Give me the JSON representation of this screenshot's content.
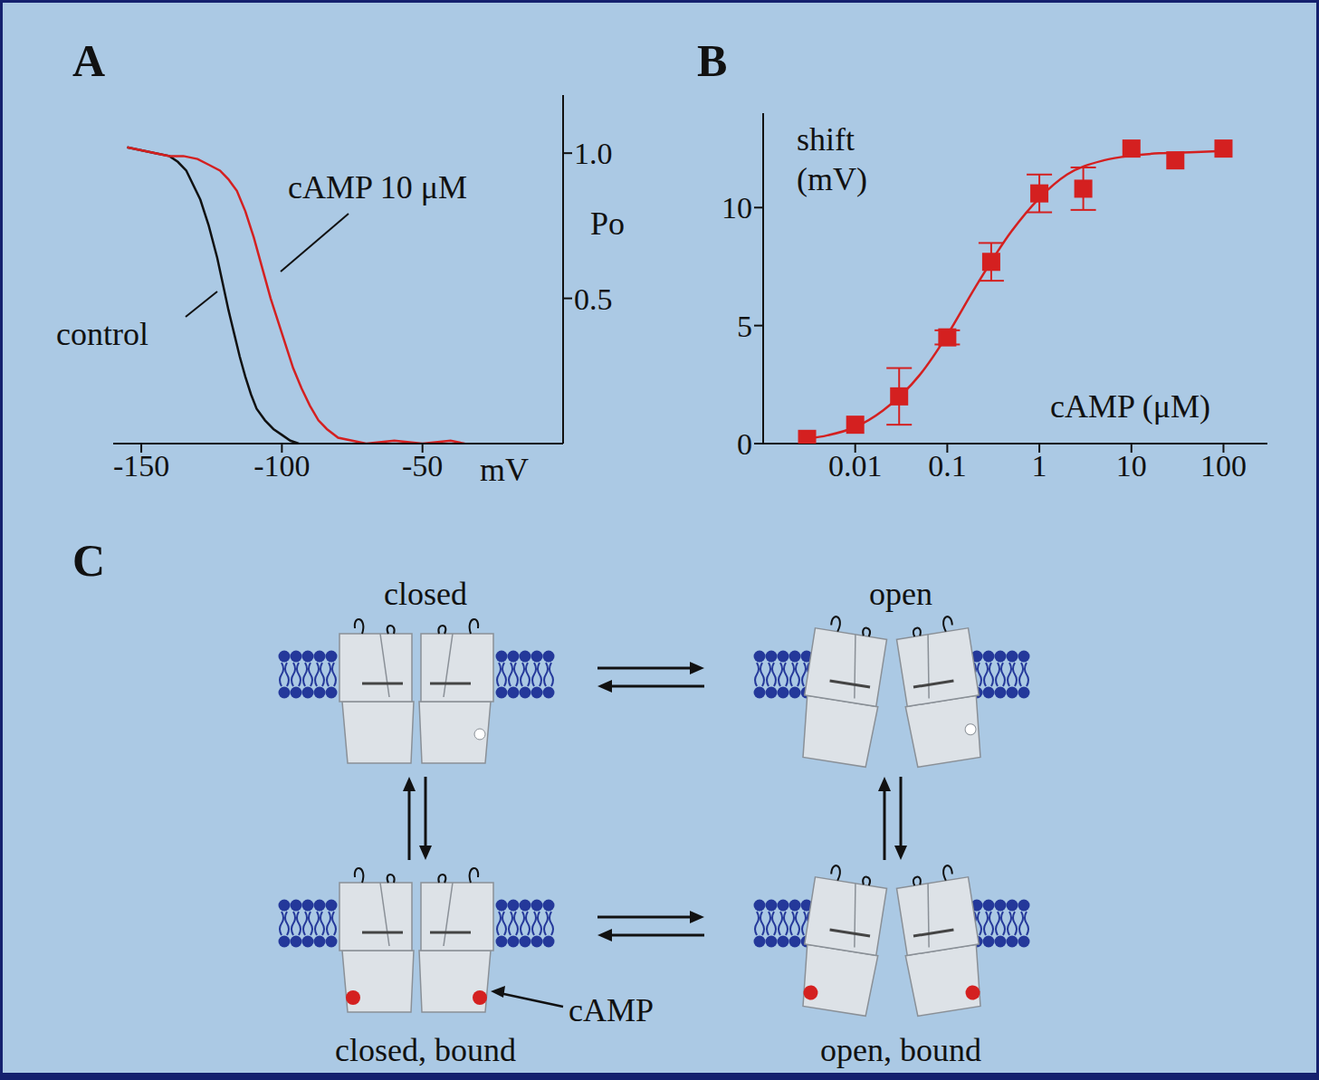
{
  "chart_data": [
    {
      "panel": "A",
      "type": "line",
      "x_label": "mV",
      "y_label": "Po",
      "xlim": [
        -160,
        0
      ],
      "xticks": [
        -150,
        -100,
        -50
      ],
      "ylim": [
        0,
        1.2
      ],
      "yticks": [
        0.5,
        {
          "value": 1,
          "label": "1.0"
        }
      ],
      "series": [
        {
          "name": "control",
          "color": "#111111",
          "x": [
            -155,
            -150,
            -145,
            -140,
            -137,
            -134,
            -132,
            -129,
            -126,
            -123,
            -121,
            -119,
            -117,
            -115,
            -113,
            -111,
            -109,
            -106,
            -103,
            -100,
            -97,
            -94
          ],
          "values": [
            1.02,
            1.01,
            1.0,
            0.99,
            0.97,
            0.94,
            0.9,
            0.84,
            0.75,
            0.64,
            0.55,
            0.46,
            0.38,
            0.3,
            0.23,
            0.17,
            0.12,
            0.08,
            0.05,
            0.03,
            0.01,
            0.0
          ]
        },
        {
          "name": "cAMP 10 μM",
          "color": "#d42020",
          "x": [
            -155,
            -150,
            -145,
            -140,
            -135,
            -130,
            -126,
            -122,
            -119,
            -116,
            -113,
            -110,
            -108,
            -106,
            -104,
            -102,
            -100,
            -98,
            -96,
            -93,
            -90,
            -87,
            -84,
            -80,
            -75,
            -70,
            -60,
            -50,
            -40,
            -35
          ],
          "values": [
            1.02,
            1.01,
            1.0,
            0.99,
            0.99,
            0.98,
            0.96,
            0.94,
            0.91,
            0.87,
            0.8,
            0.71,
            0.64,
            0.57,
            0.5,
            0.44,
            0.38,
            0.32,
            0.26,
            0.19,
            0.13,
            0.08,
            0.05,
            0.02,
            0.01,
            0.0,
            0.01,
            0.0,
            0.01,
            0.0
          ]
        }
      ]
    },
    {
      "panel": "B",
      "type": "scatter",
      "x_label": "cAMP (μM)",
      "y_label": "shift (mV)",
      "log": "x",
      "xlim": [
        0.001,
        300
      ],
      "xticks": [
        0.01,
        0.1,
        1,
        10,
        100
      ],
      "ylim": [
        0,
        14
      ],
      "yticks": [
        0,
        5,
        10
      ],
      "color": "#d42020",
      "marker": "square",
      "x": [
        0.003,
        0.01,
        0.03,
        0.1,
        0.3,
        1,
        3,
        10,
        30,
        100
      ],
      "values": [
        0.2,
        0.8,
        2.0,
        4.5,
        7.7,
        10.6,
        10.8,
        12.5,
        12.0,
        12.5
      ],
      "errors": [
        0,
        0,
        1.2,
        0.3,
        0.8,
        0.8,
        0.9,
        0,
        0,
        0
      ],
      "fit": {
        "x": [
          0.003,
          0.005,
          0.01,
          0.02,
          0.05,
          0.1,
          0.2,
          0.5,
          1,
          2,
          5,
          10,
          20,
          50,
          100
        ],
        "values": [
          0.2,
          0.35,
          0.7,
          1.4,
          2.9,
          4.6,
          6.6,
          9.0,
          10.4,
          11.4,
          12.0,
          12.2,
          12.3,
          12.35,
          12.4
        ]
      }
    }
  ],
  "diagram": {
    "panel": "C",
    "ligand_label": "cAMP",
    "states": [
      {
        "label": "closed",
        "open": false,
        "bound": false
      },
      {
        "label": "open",
        "open": true,
        "bound": false
      },
      {
        "label": "closed, bound",
        "open": false,
        "bound": true
      },
      {
        "label": "open, bound",
        "open": true,
        "bound": true
      }
    ]
  }
}
